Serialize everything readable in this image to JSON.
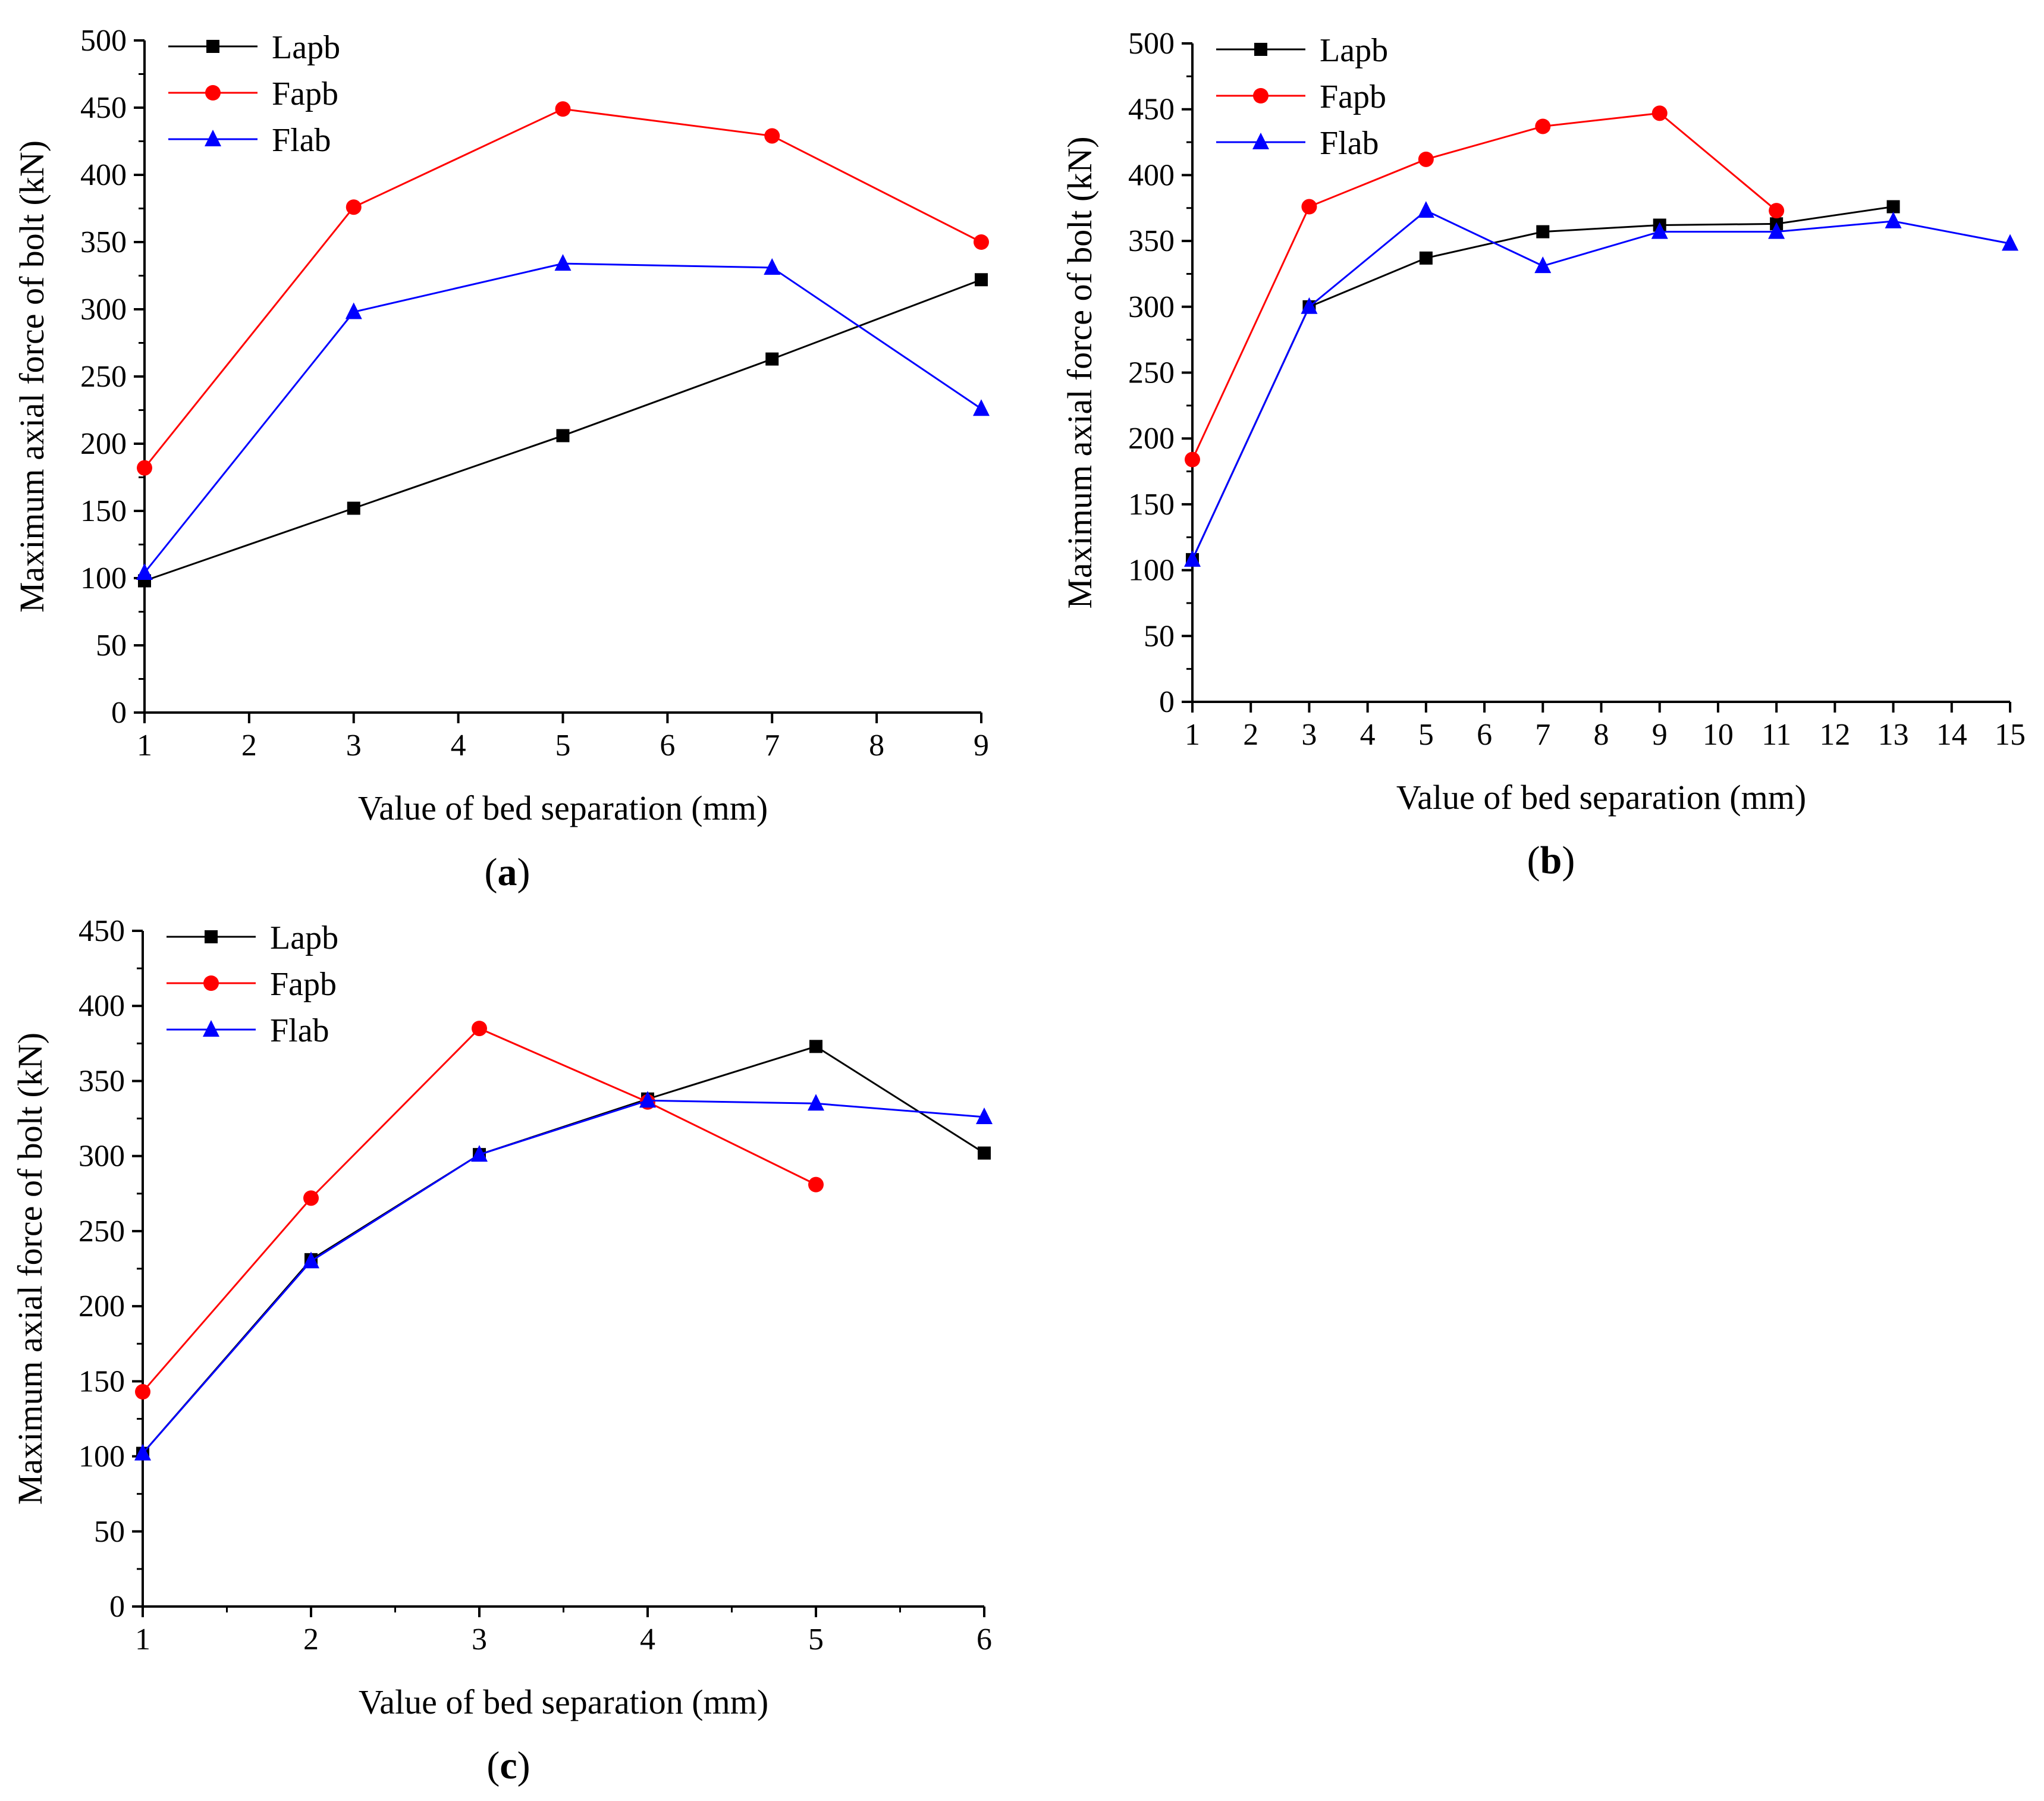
{
  "chart_data": [
    {
      "type": "line",
      "panel_label": "a",
      "xlabel": "Value of bed separation (mm)",
      "ylabel": "Maximum axial force of bolt (kN)",
      "xlim": [
        1,
        9
      ],
      "ylim": [
        0,
        500
      ],
      "xticks": [
        1,
        2,
        3,
        4,
        5,
        6,
        7,
        8,
        9
      ],
      "yticks": [
        0,
        50,
        100,
        150,
        200,
        250,
        300,
        350,
        400,
        450,
        500
      ],
      "legend_position": "top-left",
      "series": [
        {
          "name": "Lapb",
          "color": "#000000",
          "marker": "square",
          "x": [
            1,
            3,
            5,
            7,
            9
          ],
          "y": [
            98,
            152,
            206,
            263,
            322
          ]
        },
        {
          "name": "Fapb",
          "color": "#ff0000",
          "marker": "circle",
          "x": [
            1,
            3,
            5,
            7,
            9
          ],
          "y": [
            182,
            376,
            449,
            429,
            350
          ]
        },
        {
          "name": "Flab",
          "color": "#0000ff",
          "marker": "triangle",
          "x": [
            1,
            3,
            5,
            7,
            9
          ],
          "y": [
            104,
            298,
            334,
            331,
            226
          ]
        }
      ]
    },
    {
      "type": "line",
      "panel_label": "b",
      "xlabel": "Value of bed separation (mm)",
      "ylabel": "Maximum axial force of bolt (kN)",
      "xlim": [
        1,
        15
      ],
      "ylim": [
        0,
        500
      ],
      "xticks": [
        1,
        2,
        3,
        4,
        5,
        6,
        7,
        8,
        9,
        10,
        11,
        12,
        13,
        14,
        15
      ],
      "yticks": [
        0,
        50,
        100,
        150,
        200,
        250,
        300,
        350,
        400,
        450,
        500
      ],
      "legend_position": "top-left",
      "series": [
        {
          "name": "Lapb",
          "color": "#000000",
          "marker": "square",
          "x": [
            1,
            3,
            5,
            7,
            9,
            11,
            13
          ],
          "y": [
            108,
            300,
            337,
            357,
            362,
            363,
            376
          ]
        },
        {
          "name": "Fapb",
          "color": "#ff0000",
          "marker": "circle",
          "x": [
            1,
            3,
            5,
            7,
            9,
            11
          ],
          "y": [
            184,
            376,
            412,
            437,
            447,
            373
          ]
        },
        {
          "name": "Flab",
          "color": "#0000ff",
          "marker": "triangle",
          "x": [
            1,
            3,
            5,
            7,
            9,
            11,
            13,
            15
          ],
          "y": [
            108,
            300,
            373,
            331,
            357,
            357,
            365,
            348
          ]
        }
      ]
    },
    {
      "type": "line",
      "panel_label": "c",
      "xlabel": "Value of bed separation (mm)",
      "ylabel": "Maximum axial force of bolt (kN)",
      "xlim": [
        1,
        6
      ],
      "ylim": [
        0,
        450
      ],
      "xticks": [
        1,
        2,
        3,
        4,
        5,
        6
      ],
      "yticks": [
        0,
        50,
        100,
        150,
        200,
        250,
        300,
        350,
        400,
        450
      ],
      "legend_position": "top-left",
      "series": [
        {
          "name": "Lapb",
          "color": "#000000",
          "marker": "square",
          "x": [
            1,
            2,
            3,
            4,
            5,
            6
          ],
          "y": [
            102,
            231,
            301,
            338,
            373,
            302
          ]
        },
        {
          "name": "Fapb",
          "color": "#ff0000",
          "marker": "circle",
          "x": [
            1,
            2,
            3,
            4,
            5
          ],
          "y": [
            143,
            272,
            385,
            336,
            281
          ]
        },
        {
          "name": "Flab",
          "color": "#0000ff",
          "marker": "triangle",
          "x": [
            1,
            2,
            3,
            4,
            5,
            6
          ],
          "y": [
            102,
            230,
            301,
            337,
            335,
            326
          ]
        }
      ]
    }
  ]
}
